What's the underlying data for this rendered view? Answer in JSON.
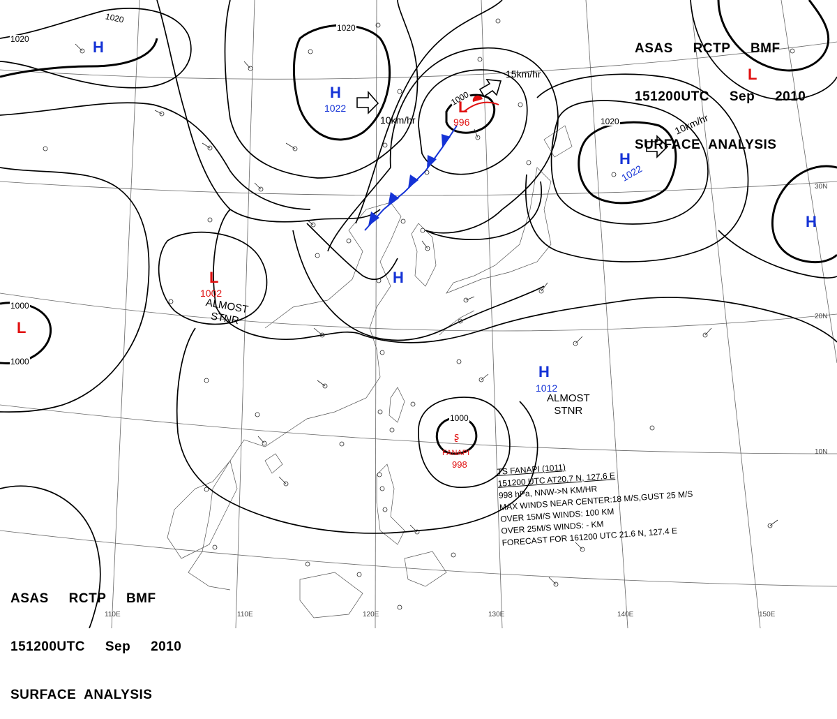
{
  "header": {
    "line1": "ASAS     RCTP     BMF",
    "line2": "151200UTC     Sep     2010",
    "line3": "SURFACE  ANALYSIS"
  },
  "isobar_labels": [
    "1020",
    "1020",
    "1020",
    "1000",
    "1000",
    "1020",
    "1000"
  ],
  "systems": [
    {
      "type": "H",
      "pressure": "1022"
    },
    {
      "type": "H",
      "pressure": "1022"
    },
    {
      "type": "L",
      "pressure": "996"
    },
    {
      "type": "L",
      "pressure": "1002"
    },
    {
      "type": "H",
      "pressure": "1012"
    },
    {
      "type": "L",
      "pressure": ""
    },
    {
      "type": "L",
      "pressure": ""
    },
    {
      "type": "H",
      "pressure": ""
    },
    {
      "type": "H",
      "pressure": ""
    },
    {
      "type": "H",
      "pressure": ""
    }
  ],
  "movements": [
    "10km/hr",
    "15km/hr",
    "10km/hr"
  ],
  "stationary_labels": [
    "ALMOST\nSTNR",
    "ALMOST\nSTNR"
  ],
  "typhoon": {
    "name": "FANAPI",
    "pressure": "998",
    "info": [
      "TS  FANAPI  (1011)",
      "151200 UTC  AT20.7 N, 127.6 E",
      "998 hPa, NNW->N  KM/HR",
      "MAX WINDS NEAR CENTER:18 M/S,GUST 25 M/S",
      "OVER 15M/S WINDS: 100 KM",
      "OVER 25M/S WINDS: - KM",
      "FORECAST FOR 161200 UTC 21.6 N, 127.4 E"
    ]
  },
  "grid_labels": {
    "longitudes": [
      "110E",
      "120E",
      "130E",
      "140E",
      "150E"
    ],
    "latitudes": [
      "30N",
      "20N",
      "10N"
    ]
  },
  "colors": {
    "high": "#1533d6",
    "low": "#e01010",
    "cold_front": "#1533d6",
    "warm_front": "#e01010"
  }
}
